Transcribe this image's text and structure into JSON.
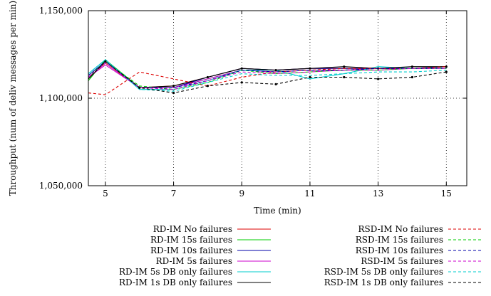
{
  "chart_data": {
    "type": "line",
    "title": "",
    "xlabel": "Time (min)",
    "ylabel": "Throughput (num of deliv messages per min)",
    "xlim": [
      4.5,
      15.6
    ],
    "ylim": [
      1050000,
      1150000
    ],
    "x_ticks": [
      5,
      7,
      9,
      11,
      13,
      15
    ],
    "x_tick_labels": [
      "5",
      "7",
      "9",
      "11",
      "13",
      "15"
    ],
    "y_ticks": [
      1050000,
      1100000,
      1150000
    ],
    "y_tick_labels": [
      "1,050,000",
      "1,100,000",
      "1,150,000"
    ],
    "grid": true,
    "legend_position": "below",
    "x": [
      4.5,
      5,
      6,
      7,
      8,
      9,
      10,
      11,
      12,
      13,
      14,
      15
    ],
    "series": [
      {
        "name": "RD-IM No failures",
        "color": "#dd0000",
        "dash": "solid",
        "values": [
          1112000,
          1120000,
          1106000,
          1107000,
          1112000,
          1117000,
          1116000,
          1117000,
          1117000,
          1117000,
          1117000,
          1118000
        ]
      },
      {
        "name": "RD-IM 15s failures",
        "color": "#00cc00",
        "dash": "solid",
        "values": [
          1110000,
          1122000,
          1106000,
          1106000,
          1111000,
          1116000,
          1115000,
          1116000,
          1116000,
          1117000,
          1117000,
          1118000
        ]
      },
      {
        "name": "RD-IM 10s failures",
        "color": "#0000aa",
        "dash": "solid",
        "values": [
          1113000,
          1121000,
          1106000,
          1106000,
          1112000,
          1117000,
          1116000,
          1117000,
          1117000,
          1117000,
          1117000,
          1118000
        ]
      },
      {
        "name": "RD-IM 5s failures",
        "color": "#cc00cc",
        "dash": "solid",
        "values": [
          1112000,
          1119000,
          1106000,
          1106000,
          1111000,
          1116000,
          1115000,
          1116000,
          1116000,
          1117000,
          1117000,
          1117000
        ]
      },
      {
        "name": "RD-IM 5s DB only failures",
        "color": "#00cccc",
        "dash": "solid",
        "values": [
          1114000,
          1122000,
          1105000,
          1105000,
          1110000,
          1116000,
          1116000,
          1111000,
          1114000,
          1118000,
          1117000,
          1117000
        ]
      },
      {
        "name": "RD-IM 1s DB only failures",
        "color": "#000000",
        "dash": "solid",
        "values": [
          1111000,
          1121000,
          1106000,
          1107000,
          1112000,
          1117000,
          1116000,
          1117000,
          1118000,
          1117000,
          1118000,
          1118000
        ]
      },
      {
        "name": "RSD-IM No failures",
        "color": "#dd0000",
        "dash": "dashed",
        "values": [
          1103000,
          1102000,
          1115000,
          1111000,
          1107000,
          1112000,
          1115000,
          1116000,
          1117000,
          1117000,
          1117000,
          1118000
        ]
      },
      {
        "name": "RSD-IM 15s failures",
        "color": "#00cc00",
        "dash": "dashed",
        "values": [
          1112000,
          1121000,
          1107000,
          1105000,
          1109000,
          1116000,
          1114000,
          1115000,
          1116000,
          1116000,
          1117000,
          1117000
        ]
      },
      {
        "name": "RSD-IM 10s failures",
        "color": "#0000aa",
        "dash": "dashed",
        "values": [
          1113000,
          1121000,
          1106000,
          1106000,
          1110000,
          1116000,
          1115000,
          1116000,
          1116000,
          1117000,
          1117000,
          1117000
        ]
      },
      {
        "name": "RSD-IM 5s failures",
        "color": "#cc00cc",
        "dash": "dashed",
        "values": [
          1112000,
          1120000,
          1106000,
          1105000,
          1110000,
          1115000,
          1114000,
          1115000,
          1116000,
          1116000,
          1117000,
          1117000
        ]
      },
      {
        "name": "RSD-IM 5s DB only failures",
        "color": "#00cccc",
        "dash": "dashed",
        "values": [
          1114000,
          1122000,
          1105000,
          1104000,
          1109000,
          1114000,
          1113000,
          1113000,
          1114000,
          1115000,
          1115000,
          1116000
        ]
      },
      {
        "name": "RSD-IM 1s DB only failures",
        "color": "#000000",
        "dash": "dashed",
        "values": [
          1111000,
          1121000,
          1106000,
          1103000,
          1107000,
          1109000,
          1108000,
          1112000,
          1112000,
          1111000,
          1112000,
          1115000
        ]
      }
    ]
  }
}
